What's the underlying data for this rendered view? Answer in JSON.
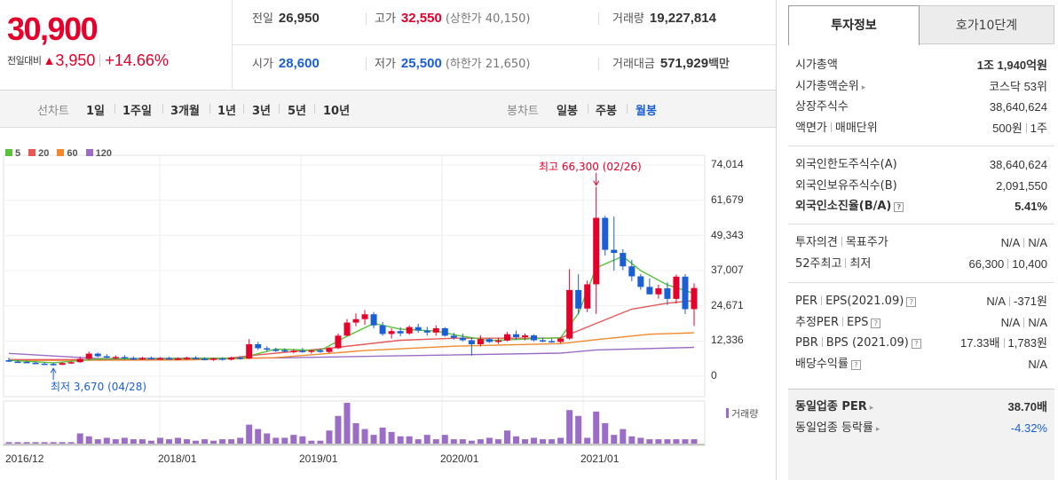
{
  "summary": {
    "price": "30,900",
    "change_label": "전일대비",
    "change_arrow": "▲",
    "change_value": "3,950",
    "change_pct": "+14.66%",
    "prev_close_label": "전일",
    "prev_close": "26,950",
    "high_label": "고가",
    "high": "32,550",
    "upper_limit": "(상한가 40,150)",
    "volume_label": "거래량",
    "volume": "19,227,814",
    "open_label": "시가",
    "open": "28,600",
    "low_label": "저가",
    "low": "25,500",
    "lower_limit": "(하한가 21,650)",
    "amount_label": "거래대금",
    "amount": "571,929",
    "amount_unit": "백만"
  },
  "toolbar": {
    "line_label": "선차트",
    "line_periods": [
      "1일",
      "1주일",
      "3개월",
      "1년",
      "3년",
      "5년",
      "10년"
    ],
    "candle_label": "봉차트",
    "candle_periods": [
      "일봉",
      "주봉",
      "월봉"
    ],
    "active_candle": "월봉"
  },
  "colors": {
    "up": "#e4002b",
    "down": "#1b5fd4",
    "ma5": "#58c23a",
    "ma20": "#e95858",
    "ma60": "#f08a2c",
    "ma120": "#9b6dc6",
    "volume": "#9b6dc6"
  },
  "chart_data": {
    "type": "candlestick",
    "legend": [
      "5",
      "20",
      "60",
      "120"
    ],
    "y_ticks": [
      "74,014",
      "61,679",
      "49,343",
      "37,007",
      "24,671",
      "12,336",
      "0"
    ],
    "ylim": [
      0,
      74014
    ],
    "x_ticks": [
      "2016/12",
      "2018/01",
      "2019/01",
      "2020/01",
      "2021/01"
    ],
    "volume_label": "거래량",
    "high_annotation": "최고 66,300 (02/26)",
    "low_annotation": "최저 3,670 (04/28)",
    "candles": [
      {
        "o": 5600,
        "h": 6500,
        "l": 4900,
        "c": 5100
      },
      {
        "o": 5100,
        "h": 5600,
        "l": 4800,
        "c": 5000
      },
      {
        "o": 5000,
        "h": 5400,
        "l": 4600,
        "c": 4700
      },
      {
        "o": 4700,
        "h": 5100,
        "l": 4200,
        "c": 4400
      },
      {
        "o": 4400,
        "h": 4800,
        "l": 4000,
        "c": 4300
      },
      {
        "o": 4300,
        "h": 4700,
        "l": 3670,
        "c": 4000
      },
      {
        "o": 4000,
        "h": 4900,
        "l": 3900,
        "c": 4600
      },
      {
        "o": 4600,
        "h": 5200,
        "l": 4300,
        "c": 4900
      },
      {
        "o": 4900,
        "h": 6800,
        "l": 4700,
        "c": 6100
      },
      {
        "o": 6100,
        "h": 8600,
        "l": 5600,
        "c": 7900
      },
      {
        "o": 7900,
        "h": 8300,
        "l": 6600,
        "c": 7000
      },
      {
        "o": 7000,
        "h": 7700,
        "l": 6300,
        "c": 6600
      },
      {
        "o": 6600,
        "h": 7300,
        "l": 6000,
        "c": 6700
      },
      {
        "o": 6700,
        "h": 7400,
        "l": 6000,
        "c": 6300
      },
      {
        "o": 6300,
        "h": 6900,
        "l": 5700,
        "c": 6000
      },
      {
        "o": 6000,
        "h": 6800,
        "l": 5600,
        "c": 6400
      },
      {
        "o": 6400,
        "h": 6900,
        "l": 5800,
        "c": 6100
      },
      {
        "o": 6100,
        "h": 6700,
        "l": 5700,
        "c": 6300
      },
      {
        "o": 6300,
        "h": 6800,
        "l": 5800,
        "c": 6000
      },
      {
        "o": 6000,
        "h": 6600,
        "l": 5600,
        "c": 6200
      },
      {
        "o": 6200,
        "h": 6800,
        "l": 5800,
        "c": 6500
      },
      {
        "o": 6500,
        "h": 7000,
        "l": 5900,
        "c": 6100
      },
      {
        "o": 6100,
        "h": 6600,
        "l": 5500,
        "c": 5900
      },
      {
        "o": 5900,
        "h": 6500,
        "l": 5400,
        "c": 6200
      },
      {
        "o": 6200,
        "h": 6600,
        "l": 5500,
        "c": 5800
      },
      {
        "o": 5800,
        "h": 6800,
        "l": 5500,
        "c": 6500
      },
      {
        "o": 6500,
        "h": 7000,
        "l": 5800,
        "c": 6200
      },
      {
        "o": 6200,
        "h": 13000,
        "l": 6000,
        "c": 11200
      },
      {
        "o": 11200,
        "h": 12000,
        "l": 9200,
        "c": 9800
      },
      {
        "o": 9800,
        "h": 10500,
        "l": 8700,
        "c": 9300
      },
      {
        "o": 9300,
        "h": 10000,
        "l": 8500,
        "c": 9100
      },
      {
        "o": 9100,
        "h": 9800,
        "l": 8400,
        "c": 8700
      },
      {
        "o": 8700,
        "h": 9500,
        "l": 8000,
        "c": 8900
      },
      {
        "o": 8900,
        "h": 9900,
        "l": 8200,
        "c": 8600
      },
      {
        "o": 8600,
        "h": 9300,
        "l": 7900,
        "c": 9000
      },
      {
        "o": 9000,
        "h": 9700,
        "l": 8200,
        "c": 8500
      },
      {
        "o": 8500,
        "h": 10200,
        "l": 8100,
        "c": 9800
      },
      {
        "o": 9800,
        "h": 15000,
        "l": 9500,
        "c": 14200
      },
      {
        "o": 14200,
        "h": 20000,
        "l": 14000,
        "c": 18800
      },
      {
        "o": 18800,
        "h": 22000,
        "l": 17500,
        "c": 20000
      },
      {
        "o": 20000,
        "h": 23200,
        "l": 18000,
        "c": 21700
      },
      {
        "o": 21700,
        "h": 22500,
        "l": 16800,
        "c": 17800
      },
      {
        "o": 17800,
        "h": 19000,
        "l": 14200,
        "c": 14800
      },
      {
        "o": 14800,
        "h": 16800,
        "l": 13200,
        "c": 15800
      },
      {
        "o": 15800,
        "h": 17200,
        "l": 14000,
        "c": 15000
      },
      {
        "o": 15000,
        "h": 17800,
        "l": 14500,
        "c": 17200
      },
      {
        "o": 17200,
        "h": 18400,
        "l": 15200,
        "c": 16000
      },
      {
        "o": 16000,
        "h": 17300,
        "l": 14300,
        "c": 15300
      },
      {
        "o": 15300,
        "h": 17800,
        "l": 14200,
        "c": 16800
      },
      {
        "o": 16800,
        "h": 17200,
        "l": 13900,
        "c": 14200
      },
      {
        "o": 14200,
        "h": 15200,
        "l": 12800,
        "c": 13500
      },
      {
        "o": 13500,
        "h": 15000,
        "l": 12200,
        "c": 12600
      },
      {
        "o": 12600,
        "h": 13600,
        "l": 7200,
        "c": 11200
      },
      {
        "o": 11200,
        "h": 14300,
        "l": 10400,
        "c": 13000
      },
      {
        "o": 13000,
        "h": 13400,
        "l": 11700,
        "c": 12000
      },
      {
        "o": 12000,
        "h": 13500,
        "l": 11300,
        "c": 12500
      },
      {
        "o": 12500,
        "h": 15500,
        "l": 12200,
        "c": 14700
      },
      {
        "o": 14700,
        "h": 16000,
        "l": 12800,
        "c": 13700
      },
      {
        "o": 13700,
        "h": 15000,
        "l": 12600,
        "c": 14300
      },
      {
        "o": 14300,
        "h": 14700,
        "l": 12200,
        "c": 12600
      },
      {
        "o": 12600,
        "h": 13500,
        "l": 11900,
        "c": 12300
      },
      {
        "o": 12300,
        "h": 13200,
        "l": 11700,
        "c": 12000
      },
      {
        "o": 12000,
        "h": 13600,
        "l": 11500,
        "c": 13200
      },
      {
        "o": 13200,
        "h": 37500,
        "l": 12800,
        "c": 30200
      },
      {
        "o": 30200,
        "h": 35700,
        "l": 21700,
        "c": 23700
      },
      {
        "o": 23700,
        "h": 33500,
        "l": 22500,
        "c": 32200
      },
      {
        "o": 32200,
        "h": 66300,
        "l": 21800,
        "c": 55500
      },
      {
        "o": 55500,
        "h": 56200,
        "l": 42300,
        "c": 44300
      },
      {
        "o": 44300,
        "h": 56000,
        "l": 37000,
        "c": 43200
      },
      {
        "o": 43200,
        "h": 44500,
        "l": 37200,
        "c": 38500
      },
      {
        "o": 38500,
        "h": 40800,
        "l": 33300,
        "c": 35000
      },
      {
        "o": 35000,
        "h": 35800,
        "l": 30300,
        "c": 31300
      },
      {
        "o": 31300,
        "h": 34300,
        "l": 28600,
        "c": 28700
      },
      {
        "o": 28700,
        "h": 32000,
        "l": 27200,
        "c": 30800
      },
      {
        "o": 30800,
        "h": 32900,
        "l": 25000,
        "c": 27100
      },
      {
        "o": 27100,
        "h": 35600,
        "l": 25500,
        "c": 34900
      },
      {
        "o": 34900,
        "h": 35800,
        "l": 21800,
        "c": 23500
      },
      {
        "o": 23500,
        "h": 32550,
        "l": 17600,
        "c": 30900
      }
    ],
    "ma5": [
      [
        0,
        5600
      ],
      [
        5,
        4700
      ],
      [
        10,
        6000
      ],
      [
        20,
        6200
      ],
      [
        26,
        6300
      ],
      [
        30,
        9500
      ],
      [
        35,
        9000
      ],
      [
        38,
        14000
      ],
      [
        41,
        18500
      ],
      [
        44,
        16500
      ],
      [
        48,
        15800
      ],
      [
        51,
        14000
      ],
      [
        54,
        12500
      ],
      [
        58,
        13000
      ],
      [
        62,
        13500
      ],
      [
        64,
        22000
      ],
      [
        66,
        38000
      ],
      [
        69,
        42000
      ],
      [
        71,
        37000
      ],
      [
        74,
        32000
      ],
      [
        77,
        29000
      ]
    ],
    "ma20": [
      [
        0,
        5800
      ],
      [
        10,
        5800
      ],
      [
        24,
        6100
      ],
      [
        28,
        7500
      ],
      [
        36,
        9800
      ],
      [
        44,
        12600
      ],
      [
        50,
        13300
      ],
      [
        56,
        13300
      ],
      [
        62,
        13400
      ],
      [
        66,
        18500
      ],
      [
        70,
        23500
      ],
      [
        74,
        25600
      ],
      [
        77,
        26500
      ]
    ],
    "ma60": [
      [
        0,
        5500
      ],
      [
        20,
        5700
      ],
      [
        30,
        6500
      ],
      [
        40,
        9000
      ],
      [
        50,
        10500
      ],
      [
        62,
        11400
      ],
      [
        66,
        12800
      ],
      [
        72,
        14700
      ],
      [
        77,
        15200
      ]
    ],
    "ma120": [
      [
        0,
        8000
      ],
      [
        10,
        6200
      ],
      [
        30,
        6400
      ],
      [
        45,
        7200
      ],
      [
        62,
        8100
      ],
      [
        66,
        9200
      ],
      [
        77,
        10100
      ]
    ],
    "volume": [
      1,
      1,
      1,
      1,
      1,
      1,
      1,
      1,
      7,
      5,
      3,
      4,
      3,
      4,
      3,
      3,
      2,
      4,
      3,
      4,
      3,
      2,
      3,
      2,
      3,
      3,
      4,
      13,
      10,
      7,
      4,
      4,
      6,
      5,
      2,
      2,
      9,
      19,
      28,
      14,
      10,
      6,
      11,
      8,
      5,
      5,
      3,
      6,
      3,
      6,
      3,
      3,
      2,
      3,
      4,
      3,
      9,
      5,
      3,
      4,
      3,
      3,
      4,
      23,
      19,
      4,
      22,
      14,
      6,
      10,
      5,
      4,
      3,
      3,
      3,
      3,
      3,
      3
    ]
  },
  "panel": {
    "tabs": [
      "투자정보",
      "호가10단계"
    ],
    "rows": [
      {
        "k": "시가총액",
        "v1": "1조 1,940억원",
        "bold_label": true
      },
      {
        "k": "시가총액순위",
        "v1": "코스닥 53위",
        "arrow": true
      },
      {
        "k": "상장주식수",
        "v1": "38,640,624"
      },
      {
        "k": "액면가",
        "k2": "매매단위",
        "v1": "500원",
        "v2": "1주"
      },
      {
        "k": "외국인한도주식수(A)",
        "v1": "38,640,624"
      },
      {
        "k": "외국인보유주식수(B)",
        "v1": "2,091,550"
      },
      {
        "k": "외국인소진율(B/A)",
        "v1": "5.41%",
        "bold": true,
        "help": true
      },
      {
        "k": "투자의견",
        "k2": "목표주가",
        "v1": "N/A",
        "v2": "N/A"
      },
      {
        "k": "52주최고",
        "k2": "최저",
        "v1": "66,300",
        "v2": "10,400"
      },
      {
        "k": "PER",
        "k2": "EPS(2021.09)",
        "v1": "N/A",
        "v2": "-371원",
        "help": true
      },
      {
        "k": "추정PER",
        "k2": "EPS",
        "v1": "N/A",
        "v2": "N/A",
        "help": true
      },
      {
        "k": "PBR",
        "k2": "BPS (2021.09)",
        "v1": "17.33배",
        "v2": "1,783원",
        "help": true
      },
      {
        "k": "배당수익률",
        "v1": "N/A",
        "help": true
      },
      {
        "k": "동일업종 PER",
        "v1": "38.70배",
        "bold": true,
        "arrow": true
      },
      {
        "k": "동일업종 등락률",
        "v1": "-4.32%",
        "arrow": true,
        "neg": true
      }
    ]
  }
}
